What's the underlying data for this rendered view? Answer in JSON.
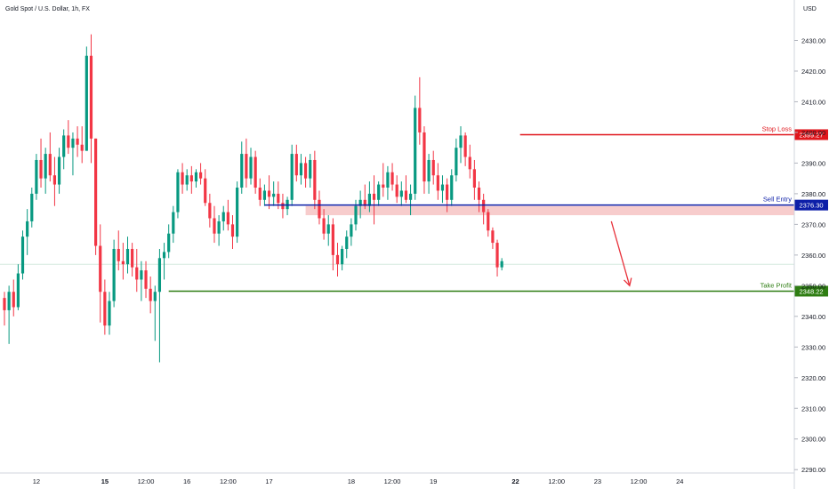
{
  "header": {
    "symbol_title": "Gold Spot / U.S. Dollar, 1h, FX",
    "currency": "USD"
  },
  "colors": {
    "up": "#089981",
    "down": "#f23645",
    "stop_loss": "#e0161c",
    "sell_entry": "#0d1fa8",
    "take_profit": "#2e7d12",
    "zone": "#f6c3c3",
    "arrow": "#e8313a",
    "current_price_line": "#d6eadf"
  },
  "chart_data": {
    "type": "candlestick",
    "title": "Gold Spot / U.S. Dollar, 1h, FX",
    "ylabel": "USD",
    "ylim": [
      2290,
      2440
    ],
    "y_ticks": [
      2430,
      2420,
      2410,
      2400,
      2390,
      2380,
      2370,
      2360,
      2350,
      2340,
      2330,
      2320,
      2310,
      2300,
      2290
    ],
    "x_ticks": [
      {
        "label": "12",
        "bold": false,
        "slot": 7
      },
      {
        "label": "15",
        "bold": true,
        "slot": 22
      },
      {
        "label": "12:00",
        "bold": false,
        "slot": 31
      },
      {
        "label": "16",
        "bold": false,
        "slot": 40
      },
      {
        "label": "12:00",
        "bold": false,
        "slot": 49
      },
      {
        "label": "17",
        "bold": false,
        "slot": 58
      },
      {
        "label": "18",
        "bold": false,
        "slot": 76
      },
      {
        "label": "12:00",
        "bold": false,
        "slot": 85
      },
      {
        "label": "19",
        "bold": false,
        "slot": 94
      },
      {
        "label": "22",
        "bold": true,
        "slot": 112
      },
      {
        "label": "12:00",
        "bold": false,
        "slot": 121
      },
      {
        "label": "23",
        "bold": false,
        "slot": 130
      },
      {
        "label": "12:00",
        "bold": false,
        "slot": 139
      },
      {
        "label": "24",
        "bold": false,
        "slot": 148
      }
    ],
    "candles": [
      [
        2346,
        2348,
        2337,
        2342
      ],
      [
        2342,
        2350,
        2331,
        2348
      ],
      [
        2348,
        2352,
        2340,
        2343
      ],
      [
        2343,
        2357,
        2342,
        2354
      ],
      [
        2354,
        2368,
        2352,
        2366
      ],
      [
        2366,
        2375,
        2360,
        2371
      ],
      [
        2371,
        2382,
        2369,
        2380
      ],
      [
        2380,
        2393,
        2378,
        2391
      ],
      [
        2391,
        2398,
        2382,
        2385
      ],
      [
        2385,
        2395,
        2380,
        2393
      ],
      [
        2393,
        2400,
        2384,
        2386
      ],
      [
        2386,
        2392,
        2376,
        2383
      ],
      [
        2383,
        2395,
        2380,
        2392
      ],
      [
        2392,
        2401,
        2388,
        2399
      ],
      [
        2399,
        2404,
        2393,
        2395
      ],
      [
        2395,
        2400,
        2386,
        2398
      ],
      [
        2398,
        2402,
        2392,
        2396
      ],
      [
        2396,
        2402,
        2390,
        2394
      ],
      [
        2394,
        2428,
        2394,
        2425
      ],
      [
        2425,
        2432,
        2390,
        2398
      ],
      [
        2398,
        2398,
        2360,
        2363
      ],
      [
        2363,
        2370,
        2338,
        2348
      ],
      [
        2348,
        2352,
        2334,
        2337
      ],
      [
        2337,
        2348,
        2334,
        2345
      ],
      [
        2345,
        2365,
        2343,
        2362
      ],
      [
        2362,
        2368,
        2355,
        2358
      ],
      [
        2358,
        2364,
        2352,
        2357
      ],
      [
        2357,
        2366,
        2354,
        2362
      ],
      [
        2362,
        2364,
        2353,
        2356
      ],
      [
        2356,
        2362,
        2348,
        2352
      ],
      [
        2352,
        2358,
        2345,
        2355
      ],
      [
        2355,
        2358,
        2346,
        2349
      ],
      [
        2349,
        2353,
        2341,
        2345
      ],
      [
        2345,
        2350,
        2332,
        2348
      ],
      [
        2348,
        2362,
        2325,
        2359
      ],
      [
        2359,
        2364,
        2352,
        2361
      ],
      [
        2361,
        2370,
        2359,
        2367
      ],
      [
        2367,
        2376,
        2364,
        2374
      ],
      [
        2374,
        2388,
        2372,
        2387
      ],
      [
        2387,
        2390,
        2380,
        2383
      ],
      [
        2383,
        2388,
        2381,
        2386
      ],
      [
        2386,
        2389,
        2380,
        2384
      ],
      [
        2384,
        2388,
        2382,
        2387
      ],
      [
        2387,
        2390,
        2383,
        2385
      ],
      [
        2385,
        2388,
        2376,
        2377
      ],
      [
        2377,
        2380,
        2369,
        2372
      ],
      [
        2372,
        2376,
        2364,
        2367
      ],
      [
        2367,
        2373,
        2363,
        2371
      ],
      [
        2371,
        2376,
        2368,
        2374
      ],
      [
        2374,
        2378,
        2368,
        2370
      ],
      [
        2370,
        2373,
        2362,
        2366
      ],
      [
        2366,
        2384,
        2364,
        2382
      ],
      [
        2382,
        2397,
        2380,
        2393
      ],
      [
        2393,
        2398,
        2382,
        2385
      ],
      [
        2385,
        2395,
        2383,
        2392
      ],
      [
        2392,
        2394,
        2380,
        2382
      ],
      [
        2382,
        2385,
        2376,
        2378
      ],
      [
        2378,
        2383,
        2376,
        2381
      ],
      [
        2381,
        2386,
        2375,
        2379
      ],
      [
        2379,
        2384,
        2376,
        2380
      ],
      [
        2380,
        2384,
        2375,
        2377
      ],
      [
        2377,
        2380,
        2372,
        2375
      ],
      [
        2375,
        2379,
        2373,
        2378
      ],
      [
        2378,
        2396,
        2376,
        2393
      ],
      [
        2393,
        2396,
        2384,
        2386
      ],
      [
        2386,
        2393,
        2383,
        2390
      ],
      [
        2390,
        2392,
        2382,
        2385
      ],
      [
        2385,
        2393,
        2382,
        2391
      ],
      [
        2391,
        2394,
        2375,
        2378
      ],
      [
        2378,
        2381,
        2370,
        2372
      ],
      [
        2372,
        2375,
        2365,
        2367
      ],
      [
        2367,
        2373,
        2363,
        2370
      ],
      [
        2370,
        2372,
        2355,
        2360
      ],
      [
        2360,
        2364,
        2353,
        2357
      ],
      [
        2357,
        2363,
        2355,
        2362
      ],
      [
        2362,
        2368,
        2359,
        2366
      ],
      [
        2366,
        2372,
        2363,
        2370
      ],
      [
        2370,
        2378,
        2368,
        2376
      ],
      [
        2376,
        2381,
        2372,
        2378
      ],
      [
        2378,
        2383,
        2375,
        2376
      ],
      [
        2376,
        2384,
        2374,
        2380
      ],
      [
        2380,
        2386,
        2370,
        2378
      ],
      [
        2378,
        2384,
        2376,
        2383
      ],
      [
        2383,
        2390,
        2379,
        2382
      ],
      [
        2382,
        2389,
        2378,
        2387
      ],
      [
        2387,
        2390,
        2381,
        2383
      ],
      [
        2383,
        2386,
        2377,
        2379
      ],
      [
        2379,
        2384,
        2376,
        2381
      ],
      [
        2381,
        2386,
        2377,
        2378
      ],
      [
        2378,
        2383,
        2373,
        2380
      ],
      [
        2380,
        2412,
        2378,
        2408
      ],
      [
        2408,
        2418,
        2396,
        2400
      ],
      [
        2400,
        2402,
        2380,
        2384
      ],
      [
        2384,
        2393,
        2380,
        2391
      ],
      [
        2391,
        2394,
        2383,
        2386
      ],
      [
        2386,
        2390,
        2378,
        2381
      ],
      [
        2381,
        2386,
        2377,
        2383
      ],
      [
        2383,
        2385,
        2374,
        2378
      ],
      [
        2378,
        2388,
        2376,
        2386
      ],
      [
        2386,
        2398,
        2384,
        2395
      ],
      [
        2395,
        2402,
        2390,
        2399
      ],
      [
        2399,
        2400,
        2389,
        2392
      ],
      [
        2392,
        2396,
        2385,
        2388
      ],
      [
        2388,
        2391,
        2378,
        2382
      ],
      [
        2382,
        2384,
        2374,
        2378
      ],
      [
        2378,
        2380,
        2370,
        2374
      ],
      [
        2374,
        2375,
        2366,
        2368
      ],
      [
        2368,
        2369,
        2362,
        2364
      ],
      [
        2364,
        2365,
        2353,
        2356
      ],
      [
        2356,
        2359,
        2355,
        2358
      ]
    ],
    "levels": [
      {
        "label": "Stop Loss",
        "value": 2399.27,
        "display": "2399.27",
        "from_slot": 113
      },
      {
        "label": "Sell Entry",
        "value": 2376.3,
        "display": "2376.30",
        "from_slot": 57
      },
      {
        "label": "Take Profit",
        "value": 2348.22,
        "display": "2348.22",
        "from_slot": 36
      }
    ],
    "zone": {
      "from_slot": 66,
      "y_top": 2376.0,
      "y_bottom": 2373.0
    },
    "current_price": 2357,
    "arrow": {
      "from_slot": 133,
      "from_y": 2371,
      "to_slot": 137,
      "to_y": 2350
    }
  }
}
